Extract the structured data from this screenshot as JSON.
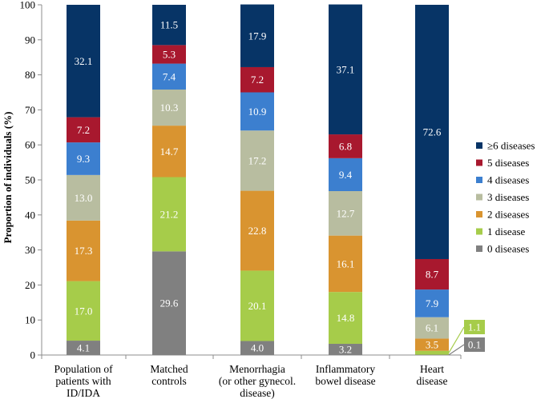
{
  "chart_data": {
    "type": "bar",
    "stacked": true,
    "title": "",
    "xlabel": "",
    "ylabel": "Proportion of individuals (%)",
    "ylim": [
      0,
      100
    ],
    "yticks": [
      0,
      10,
      20,
      30,
      40,
      50,
      60,
      70,
      80,
      90,
      100
    ],
    "grid": false,
    "legend_position": "right",
    "categories": [
      [
        "Population of",
        "patients with",
        "ID/IDA"
      ],
      [
        "Matched",
        "controls"
      ],
      [
        "Menorrhagia",
        "(or other gynecol.",
        "disease)"
      ],
      [
        "Inflammatory",
        "bowel disease"
      ],
      [
        "Heart",
        "disease"
      ]
    ],
    "series": [
      {
        "name": "0 diseases",
        "color": "#808080",
        "label_color": "#ffffff",
        "values": [
          4.1,
          29.6,
          4.0,
          3.2,
          0.1
        ]
      },
      {
        "name": "1 disease",
        "color": "#a6cc4a",
        "label_color": "#ffffff",
        "values": [
          17.0,
          21.2,
          20.1,
          14.8,
          1.1
        ]
      },
      {
        "name": "2 diseases",
        "color": "#d99430",
        "label_color": "#ffffff",
        "values": [
          17.3,
          14.7,
          22.8,
          16.1,
          3.5
        ]
      },
      {
        "name": "3 diseases",
        "color": "#b8bda0",
        "label_color": "#ffffff",
        "values": [
          13.0,
          10.3,
          17.2,
          12.7,
          6.1
        ]
      },
      {
        "name": "4 diseases",
        "color": "#3c7fcf",
        "label_color": "#ffffff",
        "values": [
          9.3,
          7.4,
          10.9,
          9.4,
          7.9
        ]
      },
      {
        "name": "5 diseases",
        "color": "#a8182e",
        "label_color": "#ffffff",
        "values": [
          7.2,
          5.3,
          7.2,
          6.8,
          8.7
        ]
      },
      {
        "name": "≥6 diseases",
        "color": "#073466",
        "label_color": "#ffffff",
        "values": [
          32.1,
          11.5,
          17.9,
          37.1,
          72.6
        ]
      }
    ],
    "value_labels": [
      [
        "4.1",
        "17.0",
        "17.3",
        "13.0",
        "9.3",
        "7.2",
        "32.1"
      ],
      [
        "29.6",
        "21.2",
        "14.7",
        "10.3",
        "7.4",
        "5.3",
        "11.5"
      ],
      [
        "4.0",
        "20.1",
        "22.8",
        "17.2",
        "10.9",
        "7.2",
        "17.9"
      ],
      [
        "3.2",
        "14.8",
        "16.1",
        "12.7",
        "9.4",
        "6.8",
        "37.1"
      ],
      [
        "0.1",
        "1.1",
        "3.5",
        "6.1",
        "7.9",
        "8.7",
        "72.6"
      ]
    ],
    "callouts": [
      {
        "category_index": 4,
        "series_index": 0,
        "label": "0.1",
        "box_color": "#808080"
      },
      {
        "category_index": 4,
        "series_index": 1,
        "label": "1.1",
        "box_color": "#a6cc4a"
      }
    ],
    "legend_order": [
      6,
      5,
      4,
      3,
      2,
      1,
      0
    ]
  }
}
